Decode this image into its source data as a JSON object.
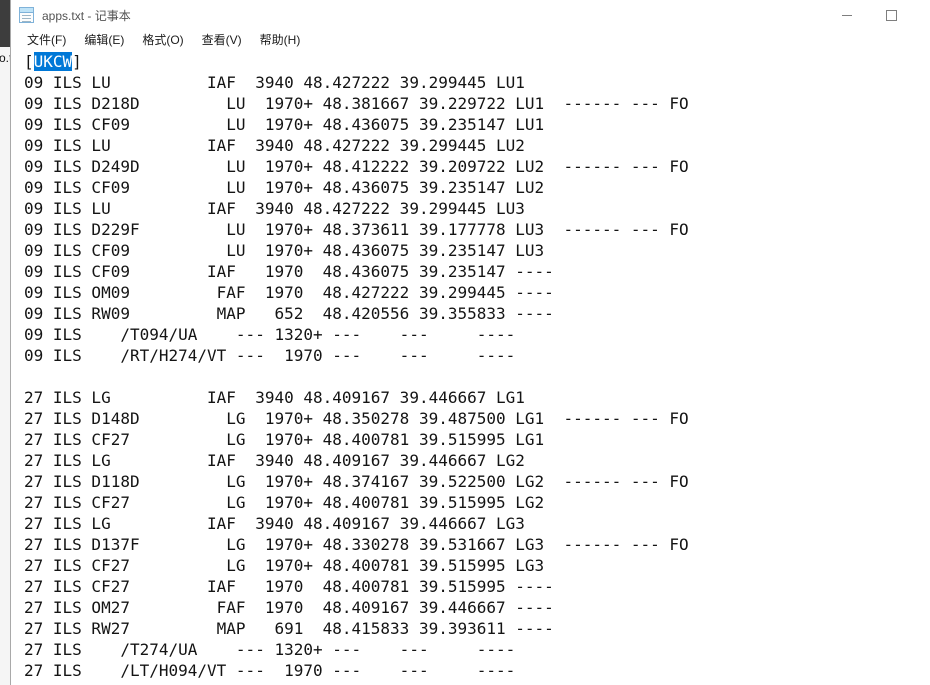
{
  "background_window": {
    "partial_text": "o.t"
  },
  "window": {
    "title": "apps.txt - 记事本",
    "controls": {
      "minimize": "minimize",
      "maximize": "maximize",
      "close": "close",
      "close_glyph": "×"
    }
  },
  "menu": {
    "items": [
      {
        "label": "文件(F)"
      },
      {
        "label": "编辑(E)"
      },
      {
        "label": "格式(O)"
      },
      {
        "label": "查看(V)"
      },
      {
        "label": "帮助(H)"
      }
    ]
  },
  "editor": {
    "first_line": {
      "prefix": "[",
      "selected": "UKCW",
      "suffix": "]"
    },
    "lines": [
      "09 ILS LU          IAF  3940 48.427222 39.299445 LU1",
      "09 ILS D218D         LU  1970+ 48.381667 39.229722 LU1  ------ --- FO",
      "09 ILS CF09          LU  1970+ 48.436075 39.235147 LU1",
      "09 ILS LU          IAF  3940 48.427222 39.299445 LU2",
      "09 ILS D249D         LU  1970+ 48.412222 39.209722 LU2  ------ --- FO",
      "09 ILS CF09          LU  1970+ 48.436075 39.235147 LU2",
      "09 ILS LU          IAF  3940 48.427222 39.299445 LU3",
      "09 ILS D229F         LU  1970+ 48.373611 39.177778 LU3  ------ --- FO",
      "09 ILS CF09          LU  1970+ 48.436075 39.235147 LU3",
      "09 ILS CF09        IAF   1970  48.436075 39.235147 ----",
      "09 ILS OM09         FAF  1970  48.427222 39.299445 ----",
      "09 ILS RW09         MAP   652  48.420556 39.355833 ----",
      "09 ILS    /T094/UA    --- 1320+ ---    ---     ----",
      "09 ILS    /RT/H274/VT ---  1970 ---    ---     ----",
      "",
      "27 ILS LG          IAF  3940 48.409167 39.446667 LG1",
      "27 ILS D148D         LG  1970+ 48.350278 39.487500 LG1  ------ --- FO",
      "27 ILS CF27          LG  1970+ 48.400781 39.515995 LG1",
      "27 ILS LG          IAF  3940 48.409167 39.446667 LG2",
      "27 ILS D118D         LG  1970+ 48.374167 39.522500 LG2  ------ --- FO",
      "27 ILS CF27          LG  1970+ 48.400781 39.515995 LG2",
      "27 ILS LG          IAF  3940 48.409167 39.446667 LG3",
      "27 ILS D137F         LG  1970+ 48.330278 39.531667 LG3  ------ --- FO",
      "27 ILS CF27          LG  1970+ 48.400781 39.515995 LG3",
      "27 ILS CF27        IAF   1970  48.400781 39.515995 ----",
      "27 ILS OM27         FAF  1970  48.409167 39.446667 ----",
      "27 ILS RW27         MAP   691  48.415833 39.393611 ----",
      "27 ILS    /T274/UA    --- 1320+ ---    ---     ----",
      "27 ILS    /LT/H094/VT ---  1970 ---    ---     ----"
    ]
  },
  "colors": {
    "selection": "#0078d7",
    "titlebar_text": "#535353",
    "strip_dark": "#3d3d3d"
  }
}
